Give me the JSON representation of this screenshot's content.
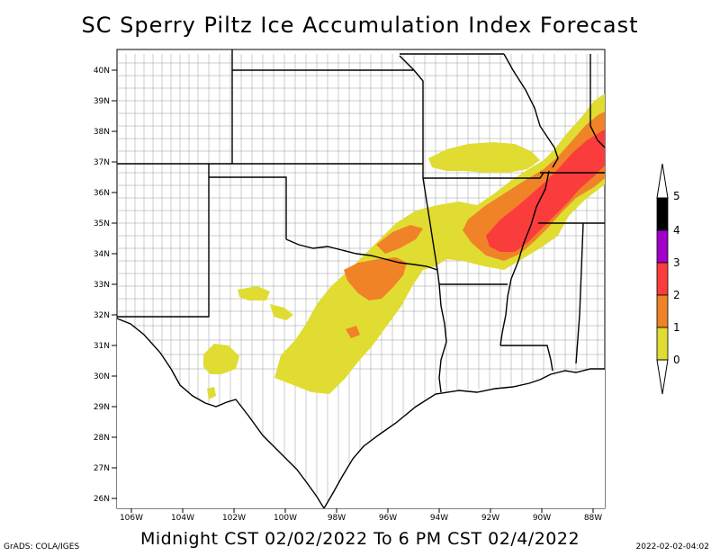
{
  "title": "SC Sperry Piltz Ice Accumulation Index Forecast",
  "subtitle": "Midnight CST 02/02/2022 To 6 PM CST 02/4/2022",
  "credit": "GrADS: COLA/IGES",
  "timestamp": "2022-02-02-04:02",
  "lat_labels": [
    "40N",
    "39N",
    "38N",
    "37N",
    "36N",
    "35N",
    "34N",
    "33N",
    "32N",
    "31N",
    "30N",
    "29N",
    "28N",
    "27N",
    "26N"
  ],
  "lon_labels": [
    "106W",
    "104W",
    "102W",
    "100W",
    "98W",
    "96W",
    "94W",
    "92W",
    "90W",
    "88W"
  ],
  "colorbar": {
    "labels": [
      "0",
      "1",
      "2",
      "3",
      "4",
      "5"
    ],
    "colors": [
      "#e0dc32",
      "#f08228",
      "#fa3c3c",
      "#a000c8",
      "#000000"
    ]
  },
  "legend_colors": {
    "yellow": "#e0dc32",
    "orange": "#f08228",
    "red": "#fa3c3c"
  }
}
